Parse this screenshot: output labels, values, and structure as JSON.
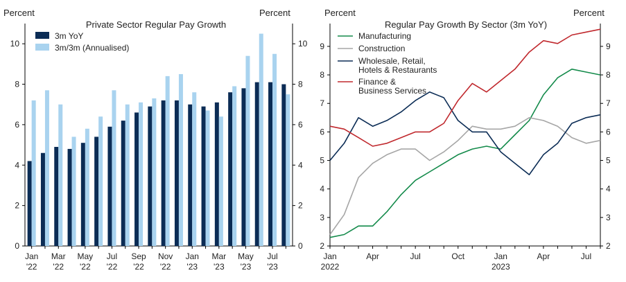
{
  "chart_data": [
    {
      "type": "bar",
      "title": "Private Sector Regular Pay Growth",
      "ylabel_left": "Percent",
      "ylabel_right": "Percent",
      "ylim": [
        0,
        11
      ],
      "yticks": [
        0,
        2,
        4,
        6,
        8,
        10
      ],
      "legend_position": "top-left",
      "grid": false,
      "categories": [
        "Jan '22",
        "Feb '22",
        "Mar '22",
        "Apr '22",
        "May '22",
        "Jun '22",
        "Jul '22",
        "Aug '22",
        "Sep '22",
        "Oct '22",
        "Nov '22",
        "Dec '22",
        "Jan '23",
        "Feb '23",
        "Mar '23",
        "Apr '23",
        "May '23",
        "Jun '23",
        "Jul '23",
        "Aug '23"
      ],
      "tick_labels": [
        {
          "index": 0,
          "month": "Jan",
          "year": "'22"
        },
        {
          "index": 2,
          "month": "Mar",
          "year": "'22"
        },
        {
          "index": 4,
          "month": "May",
          "year": "'22"
        },
        {
          "index": 6,
          "month": "Jul",
          "year": "'22"
        },
        {
          "index": 8,
          "month": "Sep",
          "year": "'22"
        },
        {
          "index": 10,
          "month": "Nov",
          "year": "'22"
        },
        {
          "index": 12,
          "month": "Jan",
          "year": "'23"
        },
        {
          "index": 14,
          "month": "Mar",
          "year": "'23"
        },
        {
          "index": 16,
          "month": "May",
          "year": "'23"
        },
        {
          "index": 18,
          "month": "Jul",
          "year": "'23"
        }
      ],
      "series": [
        {
          "name": "3m YoY",
          "color": "#0b2c55",
          "values": [
            4.2,
            4.6,
            4.9,
            4.8,
            5.1,
            5.4,
            5.9,
            6.2,
            6.6,
            6.9,
            7.2,
            7.2,
            7.0,
            6.9,
            7.1,
            7.6,
            7.8,
            8.1,
            8.1,
            8.0
          ]
        },
        {
          "name": "3m/3m (Annualised)",
          "color": "#a9d3ef",
          "values": [
            7.2,
            7.7,
            7.0,
            5.4,
            5.8,
            6.4,
            7.7,
            7.0,
            7.1,
            7.3,
            8.4,
            8.5,
            7.6,
            6.7,
            6.4,
            7.9,
            9.4,
            10.5,
            9.5,
            7.5
          ]
        }
      ]
    },
    {
      "type": "line",
      "title": "Regular Pay Growth By Sector (3m YoY)",
      "ylabel_left": "Percent",
      "ylabel_right": "Percent",
      "ylim": [
        2,
        9.8
      ],
      "yticks": [
        2,
        3,
        4,
        5,
        6,
        7,
        8,
        9
      ],
      "legend_position": "top-left",
      "grid": false,
      "x_tick_labels": [
        {
          "index": 0,
          "label": "Jan",
          "sub": "2022"
        },
        {
          "index": 3,
          "label": "Apr",
          "sub": ""
        },
        {
          "index": 6,
          "label": "Jul",
          "sub": ""
        },
        {
          "index": 9,
          "label": "Oct",
          "sub": ""
        },
        {
          "index": 12,
          "label": "Jan",
          "sub": "2023"
        },
        {
          "index": 15,
          "label": "Apr",
          "sub": ""
        },
        {
          "index": 18,
          "label": "Jul",
          "sub": ""
        }
      ],
      "series": [
        {
          "name": "Manufacturing",
          "legend_lines": [
            "Manufacturing"
          ],
          "color": "#138a4a",
          "values": [
            2.3,
            2.4,
            2.7,
            2.7,
            3.2,
            3.8,
            4.3,
            4.6,
            4.9,
            5.2,
            5.4,
            5.5,
            5.4,
            5.9,
            6.4,
            7.3,
            7.9,
            8.2,
            8.1,
            8.0
          ]
        },
        {
          "name": "Construction",
          "legend_lines": [
            "Construction"
          ],
          "color": "#a6a6a6",
          "values": [
            2.4,
            3.1,
            4.4,
            4.9,
            5.2,
            5.4,
            5.4,
            5.0,
            5.3,
            5.7,
            6.2,
            6.1,
            6.1,
            6.2,
            6.5,
            6.4,
            6.2,
            5.8,
            5.6,
            5.7
          ]
        },
        {
          "name": "Wholesale, Retail, Hotels & Restaurants",
          "legend_lines": [
            "Wholesale, Retail,",
            "Hotels & Restaurants"
          ],
          "color": "#0b2c55",
          "values": [
            5.0,
            5.6,
            6.5,
            6.2,
            6.4,
            6.7,
            7.1,
            7.4,
            7.2,
            6.4,
            6.0,
            6.0,
            5.3,
            4.9,
            4.5,
            5.2,
            5.6,
            6.3,
            6.5,
            6.6
          ]
        },
        {
          "name": "Finance & Business Services",
          "legend_lines": [
            "Finance &",
            "Business Services"
          ],
          "color": "#c0282d",
          "values": [
            6.2,
            6.1,
            5.8,
            5.5,
            5.6,
            5.8,
            6.0,
            6.0,
            6.3,
            7.1,
            7.7,
            7.4,
            7.8,
            8.2,
            8.8,
            9.2,
            9.1,
            9.4,
            9.5,
            9.6
          ]
        }
      ]
    }
  ]
}
